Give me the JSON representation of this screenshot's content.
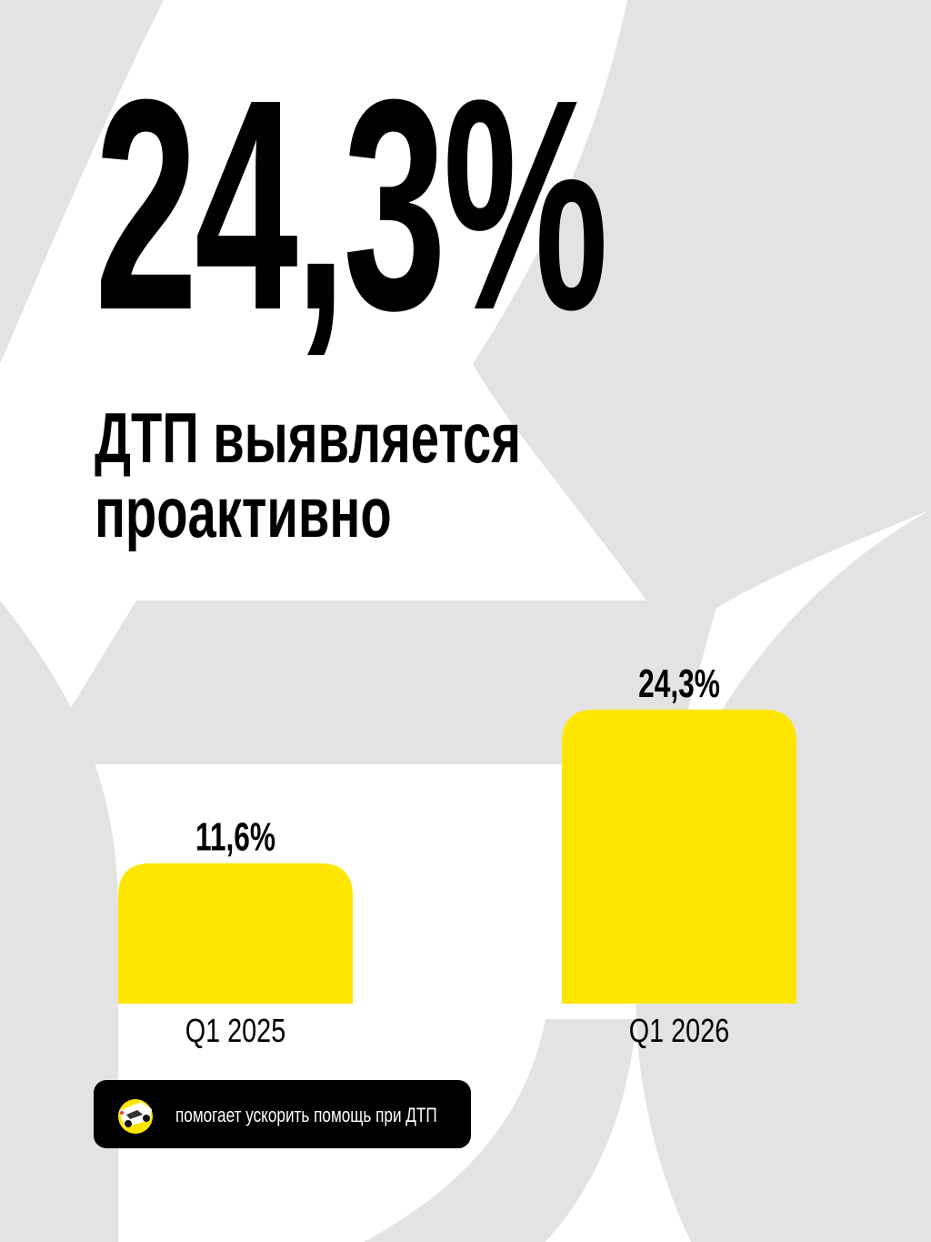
{
  "colors": {
    "bar": "#ffe600",
    "background": "#ffffff",
    "decor": "#e3e3e3",
    "text": "#000000"
  },
  "hero": {
    "value": "24,3%",
    "headline_line1": "ДТП выявляется",
    "headline_line2": "проактивно"
  },
  "chart_data": {
    "type": "bar",
    "categories": [
      "Q1 2025",
      "Q1 2026"
    ],
    "values": [
      11.6,
      24.3
    ],
    "value_labels": [
      "11,6%",
      "24,3%"
    ],
    "unit": "%",
    "grid": false,
    "axes_visible": false,
    "ylim": [
      0,
      25
    ]
  },
  "footer": {
    "text": "помогает ускорить помощь при ДТП",
    "icon": "car-crash-icon"
  }
}
